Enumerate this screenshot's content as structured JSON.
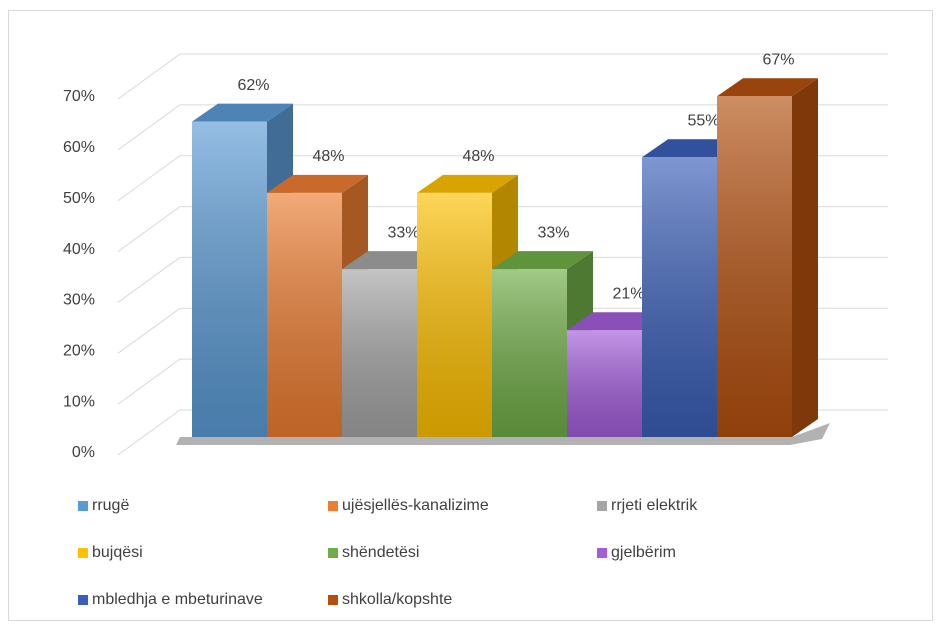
{
  "chart_data": {
    "type": "bar3d",
    "categories": [
      null
    ],
    "series": [
      {
        "name": "rrugë",
        "color": "#5b9bd5",
        "values": [
          62
        ],
        "value_labels": [
          "62%"
        ]
      },
      {
        "name": "ujësjellës-kanalizime",
        "color": "#ed7d31",
        "values": [
          48
        ],
        "value_labels": [
          "48%"
        ]
      },
      {
        "name": "rrjeti elektrik",
        "color": "#a5a5a5",
        "values": [
          33
        ],
        "value_labels": [
          "33%"
        ]
      },
      {
        "name": "bujqësi",
        "color": "#ffc000",
        "values": [
          48
        ],
        "value_labels": [
          "48%"
        ]
      },
      {
        "name": "shëndetësi",
        "color": "#70ad47",
        "values": [
          33
        ],
        "value_labels": [
          "33%"
        ]
      },
      {
        "name": "gjelbërim",
        "color": "#a35ddb",
        "values": [
          21
        ],
        "value_labels": [
          "21%"
        ]
      },
      {
        "name": "mbledhja e mbeturinave",
        "color": "#3a5fb8",
        "values": [
          55
        ],
        "value_labels": [
          "55%"
        ]
      },
      {
        "name": "shkolla/kopshte",
        "color": "#b4500f",
        "values": [
          67
        ],
        "value_labels": [
          "67%"
        ]
      }
    ],
    "ylim": [
      0,
      70
    ],
    "yticks": [
      {
        "value": 0,
        "label": "0%"
      },
      {
        "value": 10,
        "label": "10%"
      },
      {
        "value": 20,
        "label": "20%"
      },
      {
        "value": 30,
        "label": "30%"
      },
      {
        "value": 40,
        "label": "40%"
      },
      {
        "value": 50,
        "label": "50%"
      },
      {
        "value": 60,
        "label": "60%"
      },
      {
        "value": 70,
        "label": "70%"
      }
    ],
    "grid": true,
    "legend": "bottom"
  }
}
